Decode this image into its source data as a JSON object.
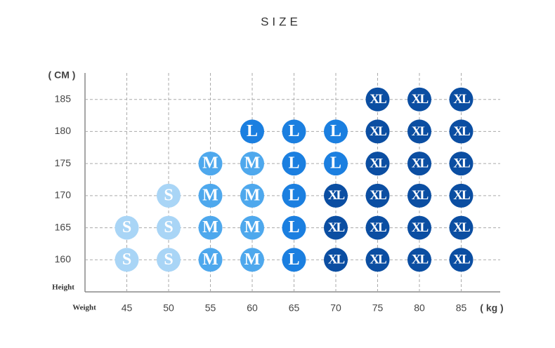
{
  "chart_data": {
    "type": "scatter",
    "title": "SIZE",
    "y_label": "( CM )",
    "x_label": "( kg )",
    "y_axis_name": "Height",
    "x_axis_name": "Weight",
    "xlim": [
      40,
      90
    ],
    "xticks": [
      45,
      50,
      55,
      60,
      65,
      70,
      75,
      80,
      85
    ],
    "ylim": [
      155,
      190
    ],
    "yticks": [
      160,
      165,
      170,
      175,
      180,
      185
    ],
    "grid": true,
    "series": [
      {
        "name": "S",
        "color": "#a9d5f6",
        "x": [
          45,
          45,
          50,
          50,
          50
        ],
        "values": [
          160,
          165,
          160,
          165,
          170
        ]
      },
      {
        "name": "M",
        "color": "#4ea8ed",
        "x": [
          55,
          55,
          55,
          55,
          60,
          60,
          60,
          60
        ],
        "values": [
          160,
          165,
          170,
          175,
          160,
          165,
          170,
          175
        ]
      },
      {
        "name": "L",
        "color": "#1b7fe0",
        "x": [
          60,
          65,
          65,
          65,
          65,
          65,
          70,
          70
        ],
        "values": [
          180,
          160,
          165,
          170,
          175,
          180,
          175,
          180
        ]
      },
      {
        "name": "XL",
        "color": "#0b4ea2",
        "x": [
          70,
          70,
          70,
          75,
          75,
          75,
          75,
          75,
          75,
          80,
          80,
          80,
          80,
          80,
          80,
          85,
          85,
          85,
          85,
          85,
          85
        ],
        "values": [
          160,
          165,
          170,
          160,
          165,
          170,
          175,
          180,
          185,
          160,
          165,
          170,
          175,
          180,
          185,
          160,
          165,
          170,
          175,
          180,
          185
        ]
      }
    ]
  }
}
